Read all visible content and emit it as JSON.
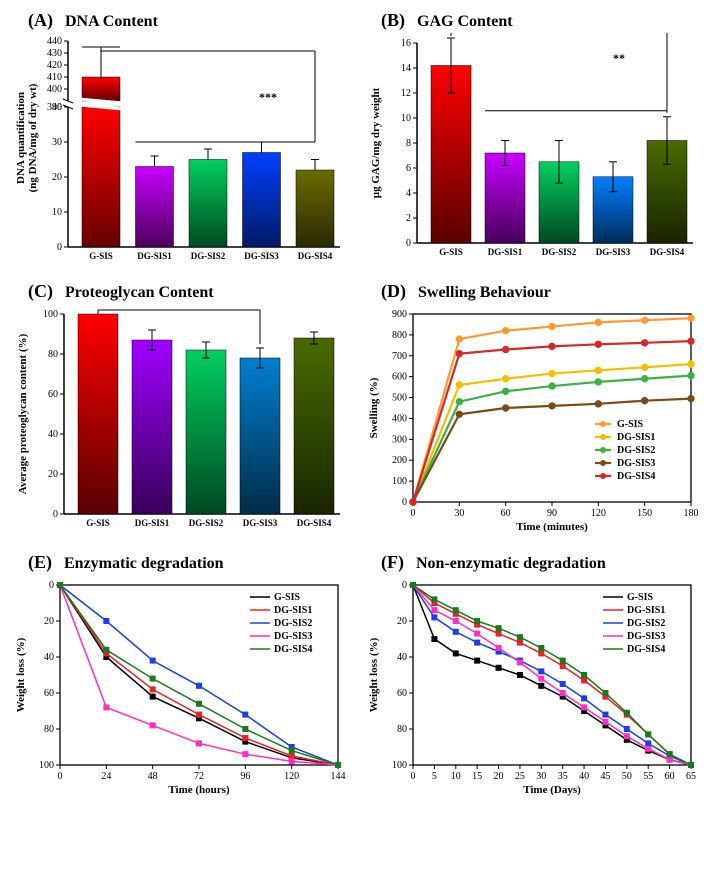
{
  "colors": {
    "G_SIS": "#ff0000",
    "DG_SIS1": "#c800ff",
    "DG_SIS2": "#00d060",
    "DG_SIS3": "#0040ff",
    "DG_SIS4": "#6b6b00",
    "D_orange": "#ff9933",
    "D_yellow": "#f0c000",
    "D_green": "#3cb043",
    "D_brown": "#7a4a1a",
    "D_red": "#d62828",
    "E_black": "#000000",
    "E_red": "#e8222a",
    "E_blue": "#1a3fe8",
    "E_pink": "#ff2ec4",
    "E_green": "#1a7a1a"
  },
  "panelA": {
    "letter": "(A)",
    "title": "DNA Content",
    "ylabel": "DNA quantification\n(ng DNA/mg of dry wt)",
    "categories": [
      "G-SIS",
      "DG-SIS1",
      "DG-SIS2",
      "DG-SIS3",
      "DG-SIS4"
    ],
    "values": [
      410,
      23,
      25,
      27,
      22
    ],
    "errors": [
      25,
      3,
      3,
      3,
      3
    ],
    "break_low": 40,
    "break_high": 390,
    "ylim_low": [
      0,
      40
    ],
    "ytick_low": [
      0,
      10,
      20,
      30,
      40,
      390
    ],
    "ylim_high": [
      390,
      440
    ],
    "ytick_high": [
      400,
      410,
      420,
      430,
      440
    ],
    "sig": "***"
  },
  "panelB": {
    "letter": "(B)",
    "title": "GAG Content",
    "ylabel": "µg GAG/mg dry weight",
    "categories": [
      "G-SIS",
      "DG-SIS1",
      "DG-SIS2",
      "DG-SIS3",
      "DG-SIS4"
    ],
    "values": [
      14.2,
      7.2,
      6.5,
      5.3,
      8.2
    ],
    "errors": [
      2.2,
      1.0,
      1.7,
      1.2,
      1.9
    ],
    "ylim": [
      0,
      16
    ],
    "ytick": [
      0,
      2,
      4,
      6,
      8,
      10,
      12,
      14,
      16
    ],
    "sig": "**",
    "colors": [
      "#ff0000",
      "#c800ff",
      "#00d060",
      "#0080ff",
      "#4a6b00"
    ]
  },
  "panelC": {
    "letter": "(C)",
    "title": "Proteoglycan Content",
    "ylabel": "Average proteoglycan content (%)",
    "categories": [
      "G-SIS",
      "DG-SIS1",
      "DG-SIS2",
      "DG-SIS3",
      "DG-SIS4"
    ],
    "values": [
      100,
      87,
      82,
      78,
      88
    ],
    "errors": [
      0,
      5,
      4,
      5,
      3
    ],
    "ylim": [
      0,
      100
    ],
    "ytick": [
      0,
      20,
      40,
      60,
      80,
      100
    ],
    "sig": "*",
    "colors": [
      "#ff0000",
      "#a000ff",
      "#00d060",
      "#0080d0",
      "#4a6b00"
    ]
  },
  "panelD": {
    "letter": "(D)",
    "title": "Swelling Behaviour",
    "xlabel": "Time (minutes)",
    "ylabel": "Swelling (%)",
    "xlim": [
      0,
      180
    ],
    "xtick": [
      0,
      30,
      60,
      90,
      120,
      150,
      180
    ],
    "ylim": [
      0,
      900
    ],
    "ytick": [
      0,
      100,
      200,
      300,
      400,
      500,
      600,
      700,
      800,
      900
    ],
    "series": [
      {
        "name": "G-SIS",
        "color": "#ff9933",
        "x": [
          0,
          30,
          60,
          90,
          120,
          150,
          180
        ],
        "y": [
          0,
          780,
          820,
          840,
          860,
          870,
          880
        ]
      },
      {
        "name": "DG-SIS1",
        "color": "#f0c000",
        "x": [
          0,
          30,
          60,
          90,
          120,
          150,
          180
        ],
        "y": [
          0,
          560,
          590,
          615,
          630,
          645,
          660
        ]
      },
      {
        "name": "DG-SIS2",
        "color": "#3cb043",
        "x": [
          0,
          30,
          60,
          90,
          120,
          150,
          180
        ],
        "y": [
          0,
          480,
          530,
          555,
          575,
          590,
          605
        ]
      },
      {
        "name": "DG-SIS3",
        "color": "#7a4a1a",
        "x": [
          0,
          30,
          60,
          90,
          120,
          150,
          180
        ],
        "y": [
          0,
          420,
          450,
          460,
          470,
          485,
          495
        ]
      },
      {
        "name": "DG-SIS4",
        "color": "#d62828",
        "x": [
          0,
          30,
          60,
          90,
          120,
          150,
          180
        ],
        "y": [
          0,
          710,
          730,
          745,
          755,
          762,
          770
        ]
      }
    ]
  },
  "panelE": {
    "letter": "(E)",
    "title": "Enzymatic degradation",
    "xlabel": "Time (hours)",
    "ylabel": "Weight loss (%)",
    "xlim": [
      0,
      144
    ],
    "xtick": [
      0,
      24,
      48,
      72,
      96,
      120,
      144
    ],
    "ylim": [
      0,
      100
    ],
    "ytick": [
      0,
      20,
      40,
      60,
      80,
      100
    ],
    "series": [
      {
        "name": "G-SIS",
        "color": "#000000",
        "x": [
          0,
          24,
          48,
          72,
          96,
          120,
          144
        ],
        "y": [
          0,
          40,
          62,
          74,
          87,
          96,
          100
        ]
      },
      {
        "name": "DG-SIS1",
        "color": "#e8222a",
        "x": [
          0,
          24,
          48,
          72,
          96,
          120,
          144
        ],
        "y": [
          0,
          38,
          58,
          72,
          85,
          95,
          100
        ]
      },
      {
        "name": "DG-SIS2",
        "color": "#1a3fe8",
        "x": [
          0,
          24,
          48,
          72,
          96,
          120,
          144
        ],
        "y": [
          0,
          20,
          42,
          56,
          72,
          90,
          100
        ]
      },
      {
        "name": "DG-SIS3",
        "color": "#ff2ec4",
        "x": [
          0,
          24,
          48,
          72,
          96,
          120,
          144
        ],
        "y": [
          0,
          68,
          78,
          88,
          94,
          98,
          100
        ]
      },
      {
        "name": "DG-SIS4",
        "color": "#1a7a1a",
        "x": [
          0,
          24,
          48,
          72,
          96,
          120,
          144
        ],
        "y": [
          0,
          36,
          52,
          66,
          80,
          92,
          100
        ]
      }
    ]
  },
  "panelF": {
    "letter": "(F)",
    "title": "Non-enzymatic degradation",
    "xlabel": "Time (Days)",
    "ylabel": "Weight loss (%)",
    "xlim": [
      0,
      65
    ],
    "xtick": [
      0,
      5,
      10,
      15,
      20,
      25,
      30,
      35,
      40,
      45,
      50,
      55,
      60,
      65
    ],
    "ylim": [
      0,
      100
    ],
    "ytick": [
      0,
      20,
      40,
      60,
      80,
      100
    ],
    "series": [
      {
        "name": "G-SIS",
        "color": "#000000",
        "x": [
          0,
          5,
          10,
          15,
          20,
          25,
          30,
          35,
          40,
          45,
          50,
          55,
          60,
          65
        ],
        "y": [
          0,
          30,
          38,
          42,
          46,
          50,
          56,
          62,
          70,
          78,
          86,
          92,
          97,
          100
        ]
      },
      {
        "name": "DG-SIS1",
        "color": "#e8222a",
        "x": [
          0,
          5,
          10,
          15,
          20,
          25,
          30,
          35,
          40,
          45,
          50,
          55,
          60,
          65
        ],
        "y": [
          0,
          10,
          16,
          22,
          27,
          32,
          38,
          45,
          53,
          62,
          72,
          83,
          94,
          100
        ]
      },
      {
        "name": "DG-SIS2",
        "color": "#1a3fe8",
        "x": [
          0,
          5,
          10,
          15,
          20,
          25,
          30,
          35,
          40,
          45,
          50,
          55,
          60,
          65
        ],
        "y": [
          0,
          18,
          26,
          32,
          37,
          42,
          48,
          55,
          63,
          72,
          80,
          88,
          95,
          100
        ]
      },
      {
        "name": "DG-SIS3",
        "color": "#ff2ec4",
        "x": [
          0,
          5,
          10,
          15,
          20,
          25,
          30,
          35,
          40,
          45,
          50,
          55,
          60,
          65
        ],
        "y": [
          0,
          14,
          20,
          27,
          35,
          43,
          52,
          60,
          68,
          76,
          84,
          91,
          97,
          100
        ]
      },
      {
        "name": "DG-SIS4",
        "color": "#1a7a1a",
        "x": [
          0,
          5,
          10,
          15,
          20,
          25,
          30,
          35,
          40,
          45,
          50,
          55,
          60,
          65
        ],
        "y": [
          0,
          8,
          14,
          20,
          24,
          29,
          35,
          42,
          50,
          60,
          71,
          83,
          94,
          100
        ]
      }
    ]
  }
}
